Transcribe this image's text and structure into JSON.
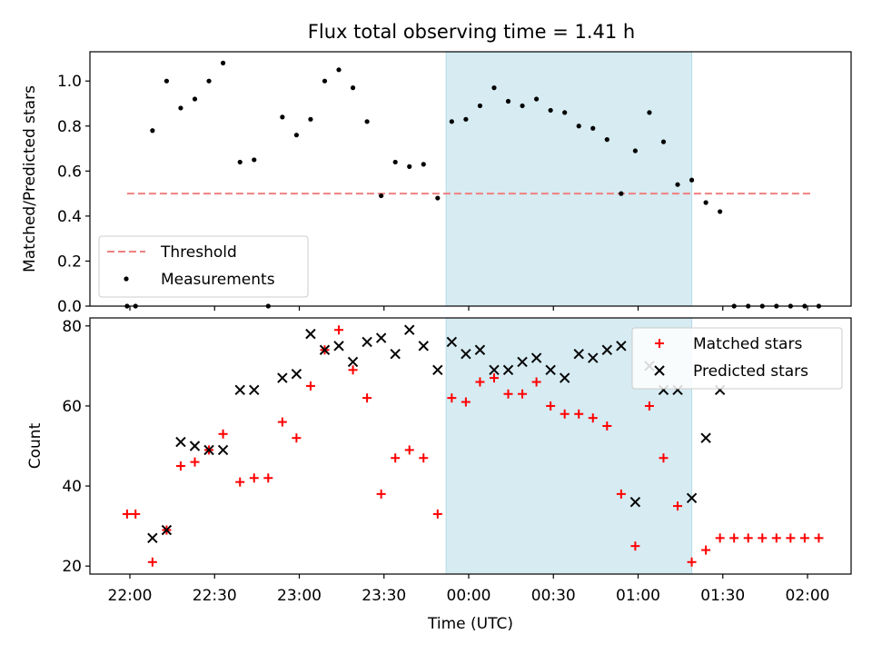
{
  "figure": {
    "title": "Flux total observing time = 1.41 h",
    "xlabel": "Time (UTC)",
    "x_ticks": [
      "22:00",
      "22:30",
      "23:00",
      "23:30",
      "00:00",
      "00:30",
      "01:00",
      "01:30",
      "02:00"
    ],
    "highlight_span": {
      "start": "23:52",
      "end": "01:19",
      "color": "#add8e6"
    }
  },
  "chart_data": [
    {
      "type": "scatter",
      "name": "ratio-panel",
      "ylabel": "Matched/Predicted stars",
      "ylim": [
        0,
        1.13
      ],
      "yticks": [
        "0.0",
        "0.2",
        "0.4",
        "0.6",
        "0.8",
        "1.0"
      ],
      "legend": {
        "placement": "lower-left"
      },
      "threshold": {
        "name": "Threshold",
        "value": 0.5,
        "x_start": "21:59",
        "x_end": "02:02",
        "color": "#f08080",
        "style": "dashed"
      },
      "series": [
        {
          "name": "Measurements",
          "color": "#000000",
          "points": [
            [
              "21:59",
              0.0
            ],
            [
              "22:02",
              0.0
            ],
            [
              "22:08",
              0.78
            ],
            [
              "22:13",
              1.0
            ],
            [
              "22:18",
              0.88
            ],
            [
              "22:23",
              0.92
            ],
            [
              "22:28",
              1.0
            ],
            [
              "22:33",
              1.08
            ],
            [
              "22:39",
              0.64
            ],
            [
              "22:44",
              0.65
            ],
            [
              "22:49",
              0.0
            ],
            [
              "22:54",
              0.84
            ],
            [
              "22:59",
              0.76
            ],
            [
              "23:04",
              0.83
            ],
            [
              "23:09",
              1.0
            ],
            [
              "23:14",
              1.05
            ],
            [
              "23:19",
              0.97
            ],
            [
              "23:24",
              0.82
            ],
            [
              "23:29",
              0.49
            ],
            [
              "23:34",
              0.64
            ],
            [
              "23:39",
              0.62
            ],
            [
              "23:44",
              0.63
            ],
            [
              "23:49",
              0.48
            ],
            [
              "23:54",
              0.82
            ],
            [
              "23:59",
              0.83
            ],
            [
              "00:04",
              0.89
            ],
            [
              "00:09",
              0.97
            ],
            [
              "00:14",
              0.91
            ],
            [
              "00:19",
              0.89
            ],
            [
              "00:24",
              0.92
            ],
            [
              "00:29",
              0.87
            ],
            [
              "00:34",
              0.86
            ],
            [
              "00:39",
              0.8
            ],
            [
              "00:44",
              0.79
            ],
            [
              "00:49",
              0.74
            ],
            [
              "00:54",
              0.5
            ],
            [
              "00:59",
              0.69
            ],
            [
              "01:04",
              0.86
            ],
            [
              "01:09",
              0.73
            ],
            [
              "01:14",
              0.54
            ],
            [
              "01:19",
              0.56
            ],
            [
              "01:24",
              0.46
            ],
            [
              "01:29",
              0.42
            ],
            [
              "01:34",
              0.0
            ],
            [
              "01:39",
              0.0
            ],
            [
              "01:44",
              0.0
            ],
            [
              "01:49",
              0.0
            ],
            [
              "01:54",
              0.0
            ],
            [
              "01:59",
              0.0
            ],
            [
              "02:04",
              0.0
            ]
          ]
        }
      ]
    },
    {
      "type": "scatter",
      "name": "count-panel",
      "ylabel": "Count",
      "ylim": [
        18,
        82
      ],
      "yticks": [
        "20",
        "40",
        "60",
        "80"
      ],
      "legend": {
        "placement": "top-right"
      },
      "series": [
        {
          "name": "Matched stars",
          "marker": "plus",
          "color": "#ff0000",
          "points": [
            [
              "21:59",
              33
            ],
            [
              "22:02",
              33
            ],
            [
              "22:08",
              21
            ],
            [
              "22:13",
              29
            ],
            [
              "22:18",
              45
            ],
            [
              "22:23",
              46
            ],
            [
              "22:28",
              49
            ],
            [
              "22:33",
              53
            ],
            [
              "22:39",
              41
            ],
            [
              "22:44",
              42
            ],
            [
              "22:49",
              42
            ],
            [
              "22:54",
              56
            ],
            [
              "22:59",
              52
            ],
            [
              "23:04",
              65
            ],
            [
              "23:09",
              74
            ],
            [
              "23:14",
              79
            ],
            [
              "23:19",
              69
            ],
            [
              "23:24",
              62
            ],
            [
              "23:29",
              38
            ],
            [
              "23:34",
              47
            ],
            [
              "23:39",
              49
            ],
            [
              "23:44",
              47
            ],
            [
              "23:49",
              33
            ],
            [
              "23:54",
              62
            ],
            [
              "23:59",
              61
            ],
            [
              "00:04",
              66
            ],
            [
              "00:09",
              67
            ],
            [
              "00:14",
              63
            ],
            [
              "00:19",
              63
            ],
            [
              "00:24",
              66
            ],
            [
              "00:29",
              60
            ],
            [
              "00:34",
              58
            ],
            [
              "00:39",
              58
            ],
            [
              "00:44",
              57
            ],
            [
              "00:49",
              55
            ],
            [
              "00:54",
              38
            ],
            [
              "00:59",
              25
            ],
            [
              "01:04",
              60
            ],
            [
              "01:09",
              47
            ],
            [
              "01:14",
              35
            ],
            [
              "01:19",
              21
            ],
            [
              "01:24",
              24
            ],
            [
              "01:29",
              27
            ],
            [
              "01:34",
              27
            ],
            [
              "01:39",
              27
            ],
            [
              "01:44",
              27
            ],
            [
              "01:49",
              27
            ],
            [
              "01:54",
              27
            ],
            [
              "01:59",
              27
            ],
            [
              "02:04",
              27
            ]
          ]
        },
        {
          "name": "Predicted stars",
          "marker": "x",
          "color": "#000000",
          "points": [
            [
              "22:08",
              27
            ],
            [
              "22:13",
              29
            ],
            [
              "22:18",
              51
            ],
            [
              "22:23",
              50
            ],
            [
              "22:28",
              49
            ],
            [
              "22:33",
              49
            ],
            [
              "22:39",
              64
            ],
            [
              "22:44",
              64
            ],
            [
              "22:54",
              67
            ],
            [
              "22:59",
              68
            ],
            [
              "23:04",
              78
            ],
            [
              "23:09",
              74
            ],
            [
              "23:14",
              75
            ],
            [
              "23:19",
              71
            ],
            [
              "23:24",
              76
            ],
            [
              "23:29",
              77
            ],
            [
              "23:34",
              73
            ],
            [
              "23:39",
              79
            ],
            [
              "23:44",
              75
            ],
            [
              "23:49",
              69
            ],
            [
              "23:54",
              76
            ],
            [
              "23:59",
              73
            ],
            [
              "00:04",
              74
            ],
            [
              "00:09",
              69
            ],
            [
              "00:14",
              69
            ],
            [
              "00:19",
              71
            ],
            [
              "00:24",
              72
            ],
            [
              "00:29",
              69
            ],
            [
              "00:34",
              67
            ],
            [
              "00:39",
              73
            ],
            [
              "00:44",
              72
            ],
            [
              "00:49",
              74
            ],
            [
              "00:54",
              75
            ],
            [
              "00:59",
              36
            ],
            [
              "01:04",
              70
            ],
            [
              "01:09",
              64
            ],
            [
              "01:14",
              64
            ],
            [
              "01:19",
              37
            ],
            [
              "01:24",
              52
            ],
            [
              "01:29",
              64
            ]
          ]
        }
      ]
    }
  ]
}
